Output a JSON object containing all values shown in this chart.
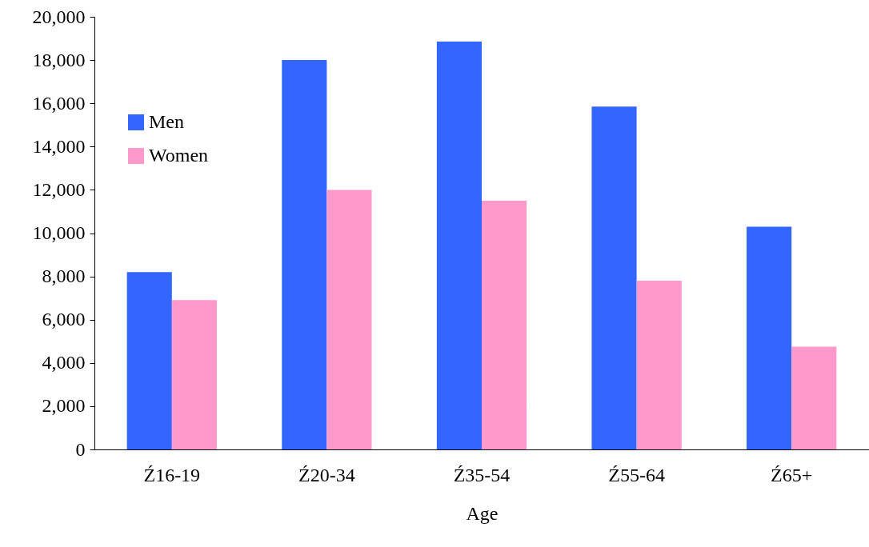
{
  "chart_data": {
    "type": "bar",
    "xlabel": "Age",
    "categories": [
      "Ź16-19",
      "Ź20-34",
      "Ź35-54",
      "Ź55-64",
      "Ź65+"
    ],
    "series": [
      {
        "name": "Men",
        "color": "#3366ff",
        "values": [
          8200,
          18000,
          18850,
          15850,
          10300
        ]
      },
      {
        "name": "Women",
        "color": "#ff99cc",
        "values": [
          6900,
          12000,
          11500,
          7800,
          4750
        ]
      }
    ],
    "ylim": [
      0,
      20000
    ],
    "yticks": [
      {
        "value": 0,
        "label": "0"
      },
      {
        "value": 2000,
        "label": "2,000"
      },
      {
        "value": 4000,
        "label": "4,000"
      },
      {
        "value": 6000,
        "label": "6,000"
      },
      {
        "value": 8000,
        "label": "8,000"
      },
      {
        "value": 10000,
        "label": "10,000"
      },
      {
        "value": 12000,
        "label": "12,000"
      },
      {
        "value": 14000,
        "label": "14,000"
      },
      {
        "value": 16000,
        "label": "16,000"
      },
      {
        "value": 18000,
        "label": "18,000"
      },
      {
        "value": 20000,
        "label": "20,000"
      }
    ],
    "legend": "top left",
    "grid": false
  }
}
